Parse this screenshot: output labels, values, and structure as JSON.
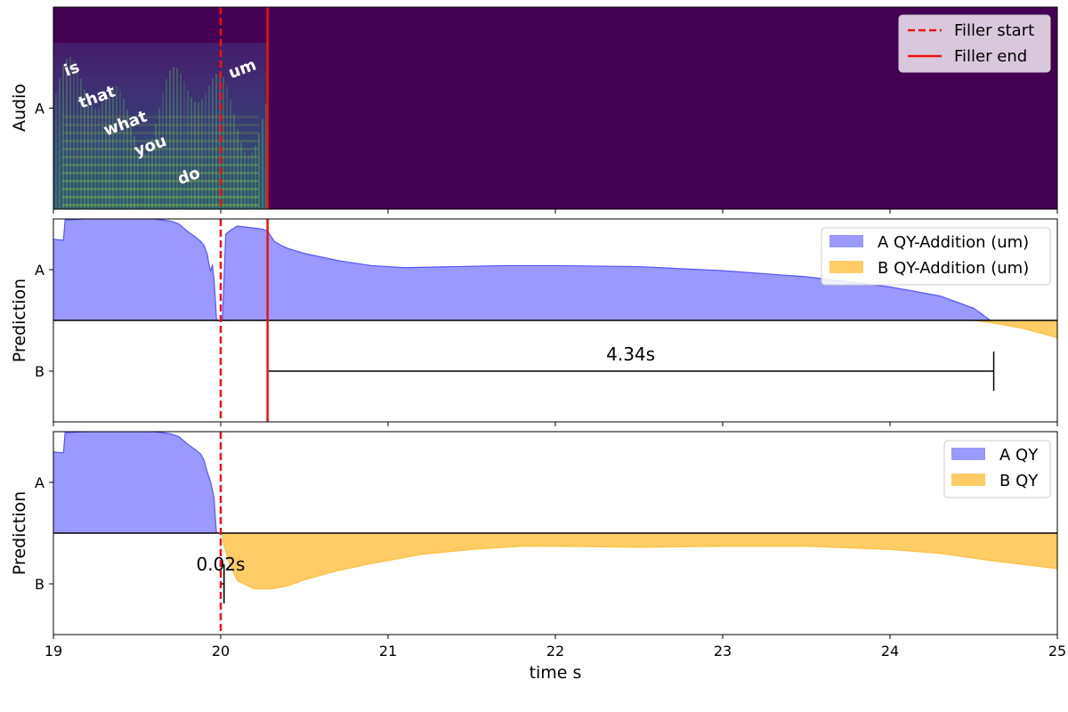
{
  "chart_data": {
    "type": "area",
    "xlabel": "time s",
    "xlim": [
      19,
      25
    ],
    "x_ticks": [
      "19",
      "20",
      "21",
      "22",
      "23",
      "24",
      "25"
    ],
    "filler_start": 20.0,
    "filler_end": 20.28,
    "colors": {
      "spectrogram_bg": "#440154",
      "series_a": "#5555ff",
      "series_b": "#ffbf40",
      "filler_line": "#ee1111"
    },
    "panels": [
      {
        "kind": "spectrogram",
        "ylabel": "Audio",
        "yticks": [
          "A"
        ],
        "legend": [
          "Filler start",
          "Filler end"
        ],
        "legend_position": "top-right",
        "words": [
          {
            "text": "is",
            "t": 19.12,
            "level": 0.67
          },
          {
            "text": "that",
            "t": 19.27,
            "level": 0.53
          },
          {
            "text": "what",
            "t": 19.44,
            "level": 0.4
          },
          {
            "text": "you",
            "t": 19.59,
            "level": 0.29
          },
          {
            "text": "do",
            "t": 19.82,
            "level": 0.14
          },
          {
            "text": "um",
            "t": 20.14,
            "level": 0.67
          }
        ]
      },
      {
        "kind": "prediction",
        "ylabel": "Prediction",
        "yticks": [
          "A",
          "B"
        ],
        "legend": [
          "A QY-Addition (um)",
          "B QY-Addition (um)"
        ],
        "legend_position": "top-right",
        "series_a": {
          "x": [
            19.0,
            19.06,
            19.07,
            19.2,
            19.35,
            19.5,
            19.6,
            19.65,
            19.7,
            19.75,
            19.8,
            19.85,
            19.88,
            19.9,
            19.92,
            19.93,
            19.94,
            19.95,
            19.96,
            19.97,
            19.975,
            20.01,
            20.03,
            20.06,
            20.1,
            20.15,
            20.2,
            20.25,
            20.28,
            20.32,
            20.36,
            20.4,
            20.5,
            20.7,
            20.9,
            21.1,
            21.4,
            21.7,
            22.0,
            22.5,
            23.0,
            23.5,
            24.0,
            24.3,
            24.5,
            24.6
          ],
          "y": [
            0.8,
            0.79,
            0.99,
            1.0,
            1.0,
            1.0,
            1.0,
            0.99,
            0.98,
            0.95,
            0.88,
            0.82,
            0.78,
            0.74,
            0.65,
            0.55,
            0.48,
            0.55,
            0.4,
            0.15,
            0.0,
            0.0,
            0.85,
            0.89,
            0.93,
            0.92,
            0.91,
            0.9,
            0.88,
            0.78,
            0.74,
            0.71,
            0.66,
            0.59,
            0.54,
            0.52,
            0.53,
            0.54,
            0.54,
            0.53,
            0.49,
            0.43,
            0.33,
            0.24,
            0.12,
            0.0
          ]
        },
        "series_b": {
          "x": [
            24.5,
            24.6,
            24.8,
            25.0
          ],
          "y": [
            0.0,
            -0.02,
            -0.08,
            -0.17
          ]
        },
        "interval": {
          "label": "4.34s",
          "start": 20.28,
          "end": 24.62
        }
      },
      {
        "kind": "prediction",
        "ylabel": "Prediction",
        "yticks": [
          "A",
          "B"
        ],
        "legend": [
          "A QY",
          "B QY"
        ],
        "legend_position": "top-right",
        "series_a": {
          "x": [
            19.0,
            19.06,
            19.07,
            19.2,
            19.35,
            19.5,
            19.6,
            19.65,
            19.7,
            19.75,
            19.8,
            19.85,
            19.88,
            19.9,
            19.92,
            19.94,
            19.96,
            19.97,
            19.975
          ],
          "y": [
            0.8,
            0.79,
            0.99,
            1.0,
            1.0,
            1.0,
            1.0,
            0.99,
            0.98,
            0.95,
            0.88,
            0.82,
            0.78,
            0.72,
            0.6,
            0.5,
            0.35,
            0.1,
            0.0
          ]
        },
        "series_b": {
          "x": [
            20.01,
            20.02,
            20.05,
            20.1,
            20.2,
            20.3,
            20.4,
            20.5,
            20.7,
            20.9,
            21.2,
            21.5,
            21.8,
            22.0,
            22.5,
            23.0,
            23.5,
            24.0,
            24.3,
            24.6,
            25.0
          ],
          "y": [
            0.0,
            -0.12,
            -0.3,
            -0.47,
            -0.55,
            -0.55,
            -0.52,
            -0.46,
            -0.37,
            -0.3,
            -0.21,
            -0.16,
            -0.13,
            -0.13,
            -0.14,
            -0.13,
            -0.13,
            -0.16,
            -0.2,
            -0.27,
            -0.35
          ]
        },
        "interval": {
          "label": "0.02s",
          "start": 20.0,
          "end": 20.02
        }
      }
    ]
  }
}
